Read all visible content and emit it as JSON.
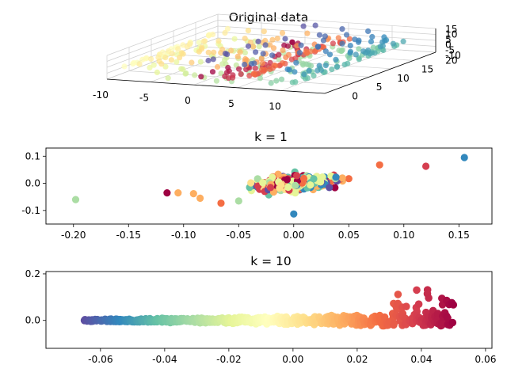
{
  "figure": {
    "background": "#ffffff",
    "colormap": "Spectral",
    "colormap_stops": [
      "#9e0142",
      "#d53e4f",
      "#f46d43",
      "#fdae61",
      "#fee08b",
      "#ffffbf",
      "#e6f598",
      "#abdda4",
      "#66c2a5",
      "#3288bd",
      "#5e4fa2"
    ]
  },
  "chart_data": [
    {
      "type": "scatter3d",
      "title": "Original data",
      "xlim": [
        -10,
        15
      ],
      "ylim": [
        -2,
        21
      ],
      "zlim": [
        -12,
        16
      ],
      "xticks": [
        "-10",
        "-5",
        "0",
        "5",
        "10"
      ],
      "yticks": [
        "0",
        "5",
        "10",
        "15",
        "20"
      ],
      "zticks": [
        "15",
        "10",
        "5",
        "0",
        "-5",
        "-10"
      ],
      "n_points": 340,
      "color_by": "position along the manifold",
      "grid": true
    },
    {
      "type": "scatter",
      "title": "k = 1",
      "xlim": [
        -0.225,
        0.18
      ],
      "ylim": [
        -0.15,
        0.13
      ],
      "xticks": [
        "-0.20",
        "-0.15",
        "-0.10",
        "-0.05",
        "0.00",
        "0.05",
        "0.10",
        "0.15"
      ],
      "yticks": [
        "0.1",
        "0.0",
        "-0.1"
      ],
      "highlighted_points": [
        {
          "x": -0.198,
          "y": -0.06,
          "color": "#abdda4"
        },
        {
          "x": -0.115,
          "y": -0.035,
          "color": "#9e0142"
        },
        {
          "x": -0.105,
          "y": -0.035,
          "color": "#fdae61"
        },
        {
          "x": -0.091,
          "y": -0.038,
          "color": "#fdae61"
        },
        {
          "x": -0.085,
          "y": -0.055,
          "color": "#fdae61"
        },
        {
          "x": -0.066,
          "y": -0.073,
          "color": "#f46d43"
        },
        {
          "x": -0.05,
          "y": -0.065,
          "color": "#abdda4"
        },
        {
          "x": 0.0,
          "y": -0.113,
          "color": "#3288bd"
        },
        {
          "x": 0.12,
          "y": 0.063,
          "color": "#d53e4f"
        },
        {
          "x": 0.155,
          "y": 0.095,
          "color": "#3288bd"
        },
        {
          "x": 0.078,
          "y": 0.068,
          "color": "#f46d43"
        }
      ],
      "cluster": {
        "x_center": 0.0,
        "y_center": 0.0,
        "x_spread": 0.05,
        "y_spread": 0.035,
        "n_points": 320
      }
    },
    {
      "type": "scatter",
      "title": "k = 10",
      "xlim": [
        -0.077,
        0.062
      ],
      "ylim": [
        -0.12,
        0.21
      ],
      "xticks": [
        "-0.06",
        "-0.04",
        "-0.02",
        "0.00",
        "0.02",
        "0.04",
        "0.06"
      ],
      "yticks": [
        "0.2",
        "0.0"
      ],
      "n_points": 600,
      "shape": "elongated band from x=-0.065 (purple) to x=0.05 (dark red), fanning upward near x=0.03-0.05"
    }
  ]
}
